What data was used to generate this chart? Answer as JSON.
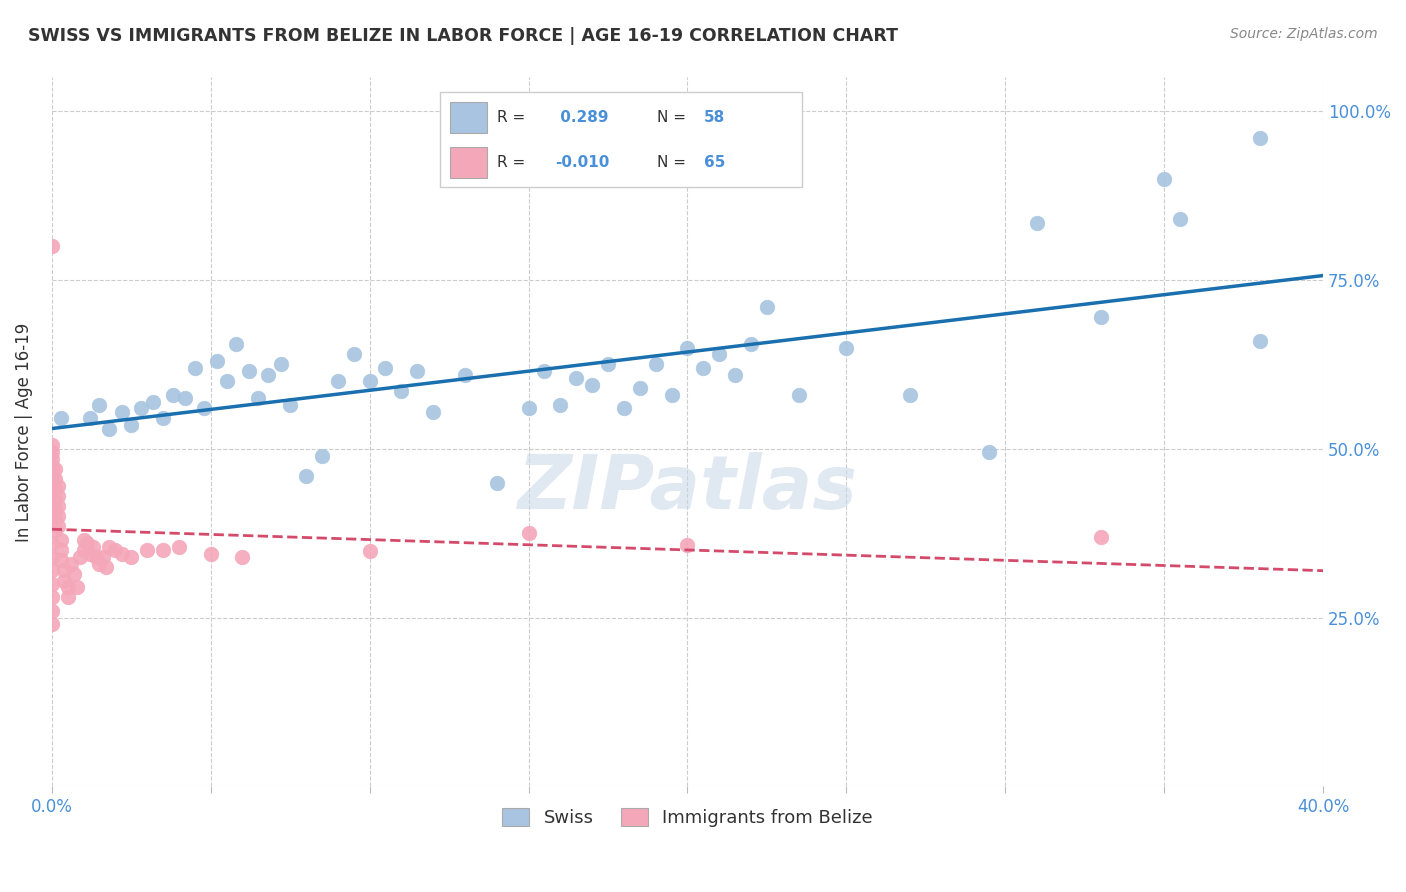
{
  "title": "SWISS VS IMMIGRANTS FROM BELIZE IN LABOR FORCE | AGE 16-19 CORRELATION CHART",
  "source": "Source: ZipAtlas.com",
  "ylabel": "In Labor Force | Age 16-19",
  "x_min": 0.0,
  "x_max": 0.4,
  "y_min": 0.0,
  "y_max": 1.05,
  "swiss_color": "#a8c4e0",
  "swiss_line_color": "#1a6faf",
  "belize_color": "#f4a7b9",
  "belize_line_color": "#d44a6a",
  "watermark": "ZIPatlas",
  "legend_swiss_label": "Swiss",
  "legend_belize_label": "Immigrants from Belize",
  "swiss_R": 0.289,
  "swiss_N": 58,
  "belize_R": -0.01,
  "belize_N": 65,
  "swiss_x": [
    0.003,
    0.012,
    0.015,
    0.018,
    0.022,
    0.025,
    0.028,
    0.032,
    0.035,
    0.038,
    0.042,
    0.045,
    0.048,
    0.052,
    0.055,
    0.058,
    0.062,
    0.065,
    0.068,
    0.072,
    0.075,
    0.08,
    0.085,
    0.09,
    0.095,
    0.1,
    0.105,
    0.11,
    0.115,
    0.12,
    0.13,
    0.14,
    0.15,
    0.155,
    0.16,
    0.165,
    0.17,
    0.175,
    0.18,
    0.185,
    0.19,
    0.195,
    0.2,
    0.205,
    0.21,
    0.215,
    0.22,
    0.225,
    0.235,
    0.25,
    0.27,
    0.295,
    0.31,
    0.33,
    0.35,
    0.355,
    0.38,
    0.38
  ],
  "swiss_y": [
    0.545,
    0.545,
    0.565,
    0.53,
    0.555,
    0.535,
    0.56,
    0.57,
    0.545,
    0.58,
    0.575,
    0.62,
    0.56,
    0.63,
    0.6,
    0.655,
    0.615,
    0.575,
    0.61,
    0.625,
    0.565,
    0.46,
    0.49,
    0.6,
    0.64,
    0.6,
    0.62,
    0.585,
    0.615,
    0.555,
    0.61,
    0.45,
    0.56,
    0.615,
    0.565,
    0.605,
    0.595,
    0.625,
    0.56,
    0.59,
    0.625,
    0.58,
    0.65,
    0.62,
    0.64,
    0.61,
    0.655,
    0.71,
    0.58,
    0.65,
    0.58,
    0.495,
    0.835,
    0.695,
    0.9,
    0.84,
    0.66,
    0.96
  ],
  "belize_x": [
    0.0,
    0.0,
    0.0,
    0.0,
    0.0,
    0.0,
    0.0,
    0.0,
    0.0,
    0.0,
    0.0,
    0.0,
    0.0,
    0.0,
    0.0,
    0.0,
    0.0,
    0.0,
    0.0,
    0.0,
    0.001,
    0.001,
    0.001,
    0.001,
    0.001,
    0.001,
    0.001,
    0.002,
    0.002,
    0.002,
    0.002,
    0.002,
    0.003,
    0.003,
    0.003,
    0.004,
    0.004,
    0.005,
    0.005,
    0.006,
    0.007,
    0.008,
    0.009,
    0.01,
    0.01,
    0.011,
    0.012,
    0.013,
    0.014,
    0.015,
    0.016,
    0.017,
    0.018,
    0.02,
    0.022,
    0.025,
    0.03,
    0.035,
    0.04,
    0.05,
    0.06,
    0.1,
    0.15,
    0.2,
    0.33
  ],
  "belize_y": [
    0.39,
    0.405,
    0.415,
    0.425,
    0.435,
    0.445,
    0.455,
    0.465,
    0.475,
    0.485,
    0.495,
    0.505,
    0.36,
    0.34,
    0.32,
    0.3,
    0.28,
    0.26,
    0.24,
    0.8,
    0.38,
    0.395,
    0.41,
    0.425,
    0.44,
    0.455,
    0.47,
    0.385,
    0.4,
    0.415,
    0.43,
    0.445,
    0.365,
    0.35,
    0.335,
    0.32,
    0.305,
    0.295,
    0.28,
    0.33,
    0.315,
    0.295,
    0.34,
    0.35,
    0.365,
    0.36,
    0.345,
    0.355,
    0.34,
    0.33,
    0.34,
    0.325,
    0.355,
    0.35,
    0.345,
    0.34,
    0.35,
    0.35,
    0.355,
    0.345,
    0.34,
    0.348,
    0.375,
    0.358,
    0.37
  ]
}
